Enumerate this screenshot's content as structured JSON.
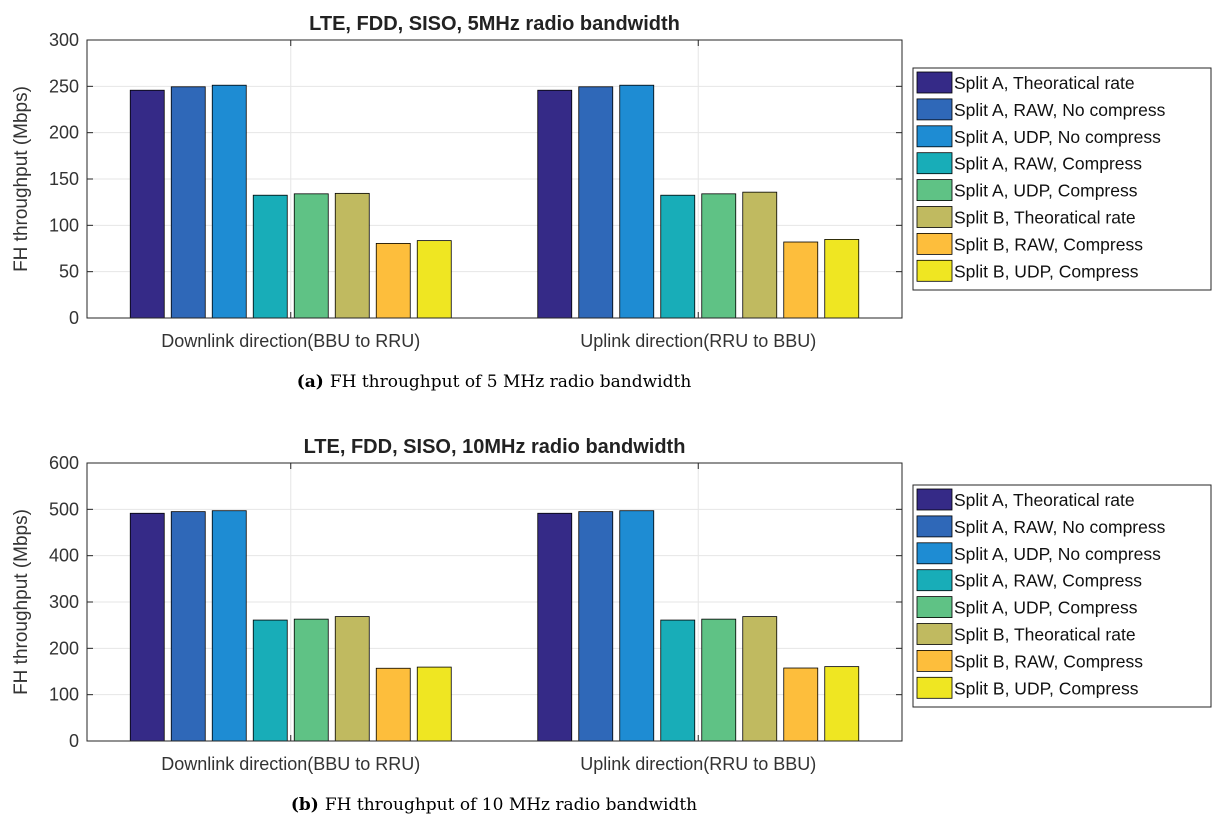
{
  "colors": {
    "series": [
      "#352A87",
      "#2F68B8",
      "#1E8CD3",
      "#18ADB8",
      "#5FC285",
      "#C0BA60",
      "#FDBE3C",
      "#EFE622"
    ],
    "axis": "#262626",
    "grid": "#e6e6e6",
    "bar_edge": "#000000"
  },
  "charts": [
    {
      "caption_label": "(a)",
      "caption_text": "FH throughput of 5 MHz radio bandwidth"
    },
    {
      "caption_label": "(b)",
      "caption_text": "FH throughput of 10 MHz radio bandwidth"
    }
  ],
  "chart_data": [
    {
      "type": "bar",
      "title": "LTE, FDD, SISO, 5MHz radio bandwidth",
      "xlabel": "",
      "ylabel": "FH throughput (Mbps)",
      "ylim": [
        0,
        300
      ],
      "yticks": [
        0,
        50,
        100,
        150,
        200,
        250,
        300
      ],
      "grid": true,
      "legend_position": "right",
      "categories": [
        "Downlink direction(BBU to RRU)",
        "Uplink direction(RRU to BBU)"
      ],
      "series": [
        {
          "name": "Split A, Theoratical rate",
          "values": [
            245.8,
            245.8
          ]
        },
        {
          "name": "Split A, RAW, No compress",
          "values": [
            249.5,
            249.5
          ]
        },
        {
          "name": "Split A, UDP, No compress",
          "values": [
            251.2,
            251.2
          ]
        },
        {
          "name": "Split A, RAW, Compress",
          "values": [
            132.5,
            132.5
          ]
        },
        {
          "name": "Split A, UDP, Compress",
          "values": [
            134.0,
            134.0
          ]
        },
        {
          "name": "Split B, Theoratical rate",
          "values": [
            134.5,
            135.8
          ]
        },
        {
          "name": "Split B, RAW, Compress",
          "values": [
            80.5,
            82.0
          ]
        },
        {
          "name": "Split B, UDP, Compress",
          "values": [
            83.5,
            84.8
          ]
        }
      ]
    },
    {
      "type": "bar",
      "title": "LTE, FDD, SISO, 10MHz radio bandwidth",
      "xlabel": "",
      "ylabel": "FH throughput (Mbps)",
      "ylim": [
        0,
        600
      ],
      "yticks": [
        0,
        100,
        200,
        300,
        400,
        500,
        600
      ],
      "grid": true,
      "legend_position": "right",
      "categories": [
        "Downlink direction(BBU to RRU)",
        "Uplink direction(RRU to BBU)"
      ],
      "series": [
        {
          "name": "Split A, Theoratical rate",
          "values": [
            491.5,
            491.5
          ]
        },
        {
          "name": "Split A, RAW, No compress",
          "values": [
            495.0,
            495.0
          ]
        },
        {
          "name": "Split A, UDP, No compress",
          "values": [
            497.0,
            497.0
          ]
        },
        {
          "name": "Split A, RAW, Compress",
          "values": [
            261.0,
            261.0
          ]
        },
        {
          "name": "Split A, UDP, Compress",
          "values": [
            263.0,
            263.0
          ]
        },
        {
          "name": "Split B, Theoratical rate",
          "values": [
            268.5,
            268.5
          ]
        },
        {
          "name": "Split B, RAW, Compress",
          "values": [
            157.0,
            157.5
          ]
        },
        {
          "name": "Split B, UDP, Compress",
          "values": [
            159.5,
            160.5
          ]
        }
      ]
    }
  ]
}
